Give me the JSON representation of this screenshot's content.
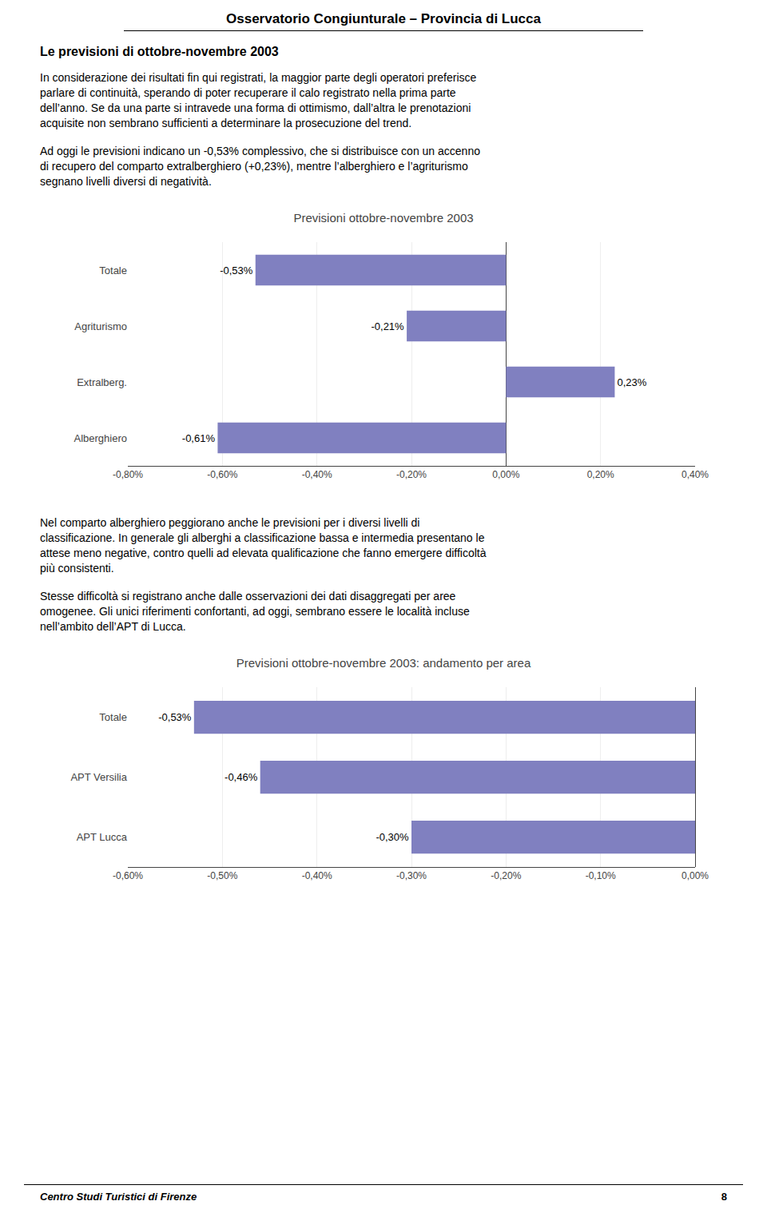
{
  "page_title": "Osservatorio Congiunturale – Provincia di Lucca",
  "heading": "Le previsioni di ottobre-novembre 2003",
  "paragraphs": [
    [
      "In considerazione dei risultati fin qui registrati, la maggior parte degli operatori preferisce",
      "parlare di continuità, sperando di poter recuperare il calo registrato nella prima parte",
      "dell’anno. Se da una parte si intravede una forma di ottimismo, dall’altra le prenotazioni",
      "acquisite non sembrano sufficienti a determinare la prosecuzione del trend."
    ],
    [
      "Ad oggi le previsioni indicano un -0,53% complessivo, che si distribuisce con un accenno",
      "di recupero del comparto extralberghiero (+0,23%), mentre l’alberghiero e l’agriturismo",
      "segnano livelli diversi di negatività."
    ],
    [
      "Nel comparto alberghiero peggiorano anche le previsioni per i diversi livelli di",
      "classificazione. In generale gli alberghi a classificazione bassa e intermedia presentano le",
      "attese meno negative, contro quelli ad elevata qualificazione che fanno emergere difficoltà",
      "più consistenti."
    ],
    [
      "Stesse difficoltà si registrano anche dalle osservazioni dei dati disaggregati per aree",
      "omogenee. Gli unici riferimenti confortanti, ad oggi, sembrano essere le località incluse",
      "nell’ambito dell’APT di Lucca."
    ]
  ],
  "footer": "Centro Studi Turistici di Firenze",
  "page_number": "8",
  "chart_data": [
    {
      "type": "bar",
      "orientation": "horizontal",
      "title": "Previsioni ottobre-novembre 2003",
      "categories": [
        "Totale",
        "Agriturismo",
        "Extralberg.",
        "Alberghiero"
      ],
      "values": [
        -0.53,
        -0.21,
        0.23,
        -0.61
      ],
      "value_labels": [
        "-0,53%",
        "-0,21%",
        "0,23%",
        "-0,61%"
      ],
      "data_labels": true,
      "color": "#8080c0",
      "xlim": [
        -0.8,
        0.4
      ],
      "xticks": [
        {
          "value": -0.8,
          "label": "-0,80%"
        },
        {
          "value": -0.6,
          "label": "-0,60%"
        },
        {
          "value": -0.4,
          "label": "-0,40%"
        },
        {
          "value": -0.2,
          "label": "-0,20%"
        },
        {
          "value": 0.0,
          "label": "0,00%"
        },
        {
          "value": 0.2,
          "label": "0,20%"
        },
        {
          "value": 0.4,
          "label": "0,40%"
        }
      ],
      "grid": true
    },
    {
      "type": "bar",
      "orientation": "horizontal",
      "title": "Previsioni ottobre-novembre 2003: andamento per area",
      "categories": [
        "Totale",
        "APT Versilia",
        "APT Lucca"
      ],
      "values": [
        -0.53,
        -0.46,
        -0.3
      ],
      "value_labels": [
        "-0,53%",
        "-0,46%",
        "-0,30%"
      ],
      "data_labels": true,
      "color": "#8080c0",
      "xlim": [
        -0.6,
        0.0
      ],
      "xticks": [
        {
          "value": -0.6,
          "label": "-0,60%"
        },
        {
          "value": -0.5,
          "label": "-0,50%"
        },
        {
          "value": -0.4,
          "label": "-0,40%"
        },
        {
          "value": -0.3,
          "label": "-0,30%"
        },
        {
          "value": -0.2,
          "label": "-0,20%"
        },
        {
          "value": -0.1,
          "label": "-0,10%"
        },
        {
          "value": 0.0,
          "label": "0,00%"
        }
      ],
      "grid": true
    }
  ]
}
